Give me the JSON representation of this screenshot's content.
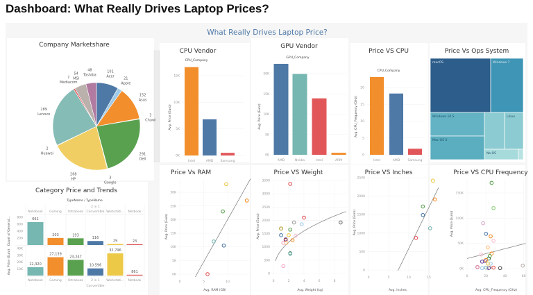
{
  "dashboard_title": "Dashboard: What Really Drives Laptop Prices?",
  "header": "What Really Drives Laptop Price?",
  "chart_data": [
    {
      "type": "pie",
      "title": "Company Marketshare",
      "slices": [
        {
          "name": "Acer",
          "value": 101,
          "color": "#4e79a7"
        },
        {
          "name": "Apple",
          "value": 21,
          "color": "#a0cbe8"
        },
        {
          "name": "Asus",
          "value": 152,
          "color": "#f28e2b"
        },
        {
          "name": "Chuwi",
          "value": 3,
          "color": "#ffbe7d"
        },
        {
          "name": "Dell",
          "value": 291,
          "color": "#59a14f"
        },
        {
          "name": "Google",
          "value": 3,
          "color": "#8cd17d"
        },
        {
          "name": "HP",
          "value": 268,
          "color": "#f1ce63"
        },
        {
          "name": "Huawei",
          "value": 2,
          "color": "#b6992d"
        },
        {
          "name": "Lenovo",
          "value": 289,
          "color": "#86bcb6"
        },
        {
          "name": "Mediacom",
          "value": 7,
          "color": "#e15759"
        },
        {
          "name": "MSI",
          "value": 54,
          "color": "#bab0ac"
        },
        {
          "name": "Toshiba",
          "value": 48,
          "color": "#b07aa1"
        }
      ]
    },
    {
      "type": "bar",
      "title": "Category Price and Trends",
      "xlabel": "TypeName / TypeName",
      "categories": [
        [
          "Notebook"
        ],
        [
          "Gaming"
        ],
        [
          "Ultrabook"
        ],
        [
          "2 in 1",
          "Convertible"
        ],
        [
          "Workstati..."
        ],
        [
          "Netbook"
        ]
      ],
      "colors": [
        "#76b7b2",
        "#f28e2b",
        "#59a14f",
        "#4e79a7",
        "#edc948",
        "#e15759"
      ],
      "series": [
        {
          "name": "Count of General...",
          "values": [
            661,
            203,
            193,
            116,
            29,
            23
          ],
          "ylim": [
            0,
            800
          ],
          "ticks": [
            "200",
            "400",
            "600",
            "800"
          ]
        },
        {
          "name": "Avg. Price (Euro)",
          "values": [
            12320,
            27139,
            23247,
            10596,
            32796,
            861
          ],
          "ylim": [
            0,
            40000
          ],
          "ticks": [
            "10K",
            "20K",
            "30K",
            "40K"
          ]
        }
      ]
    },
    {
      "type": "bar",
      "title": "CPU Vendor",
      "xlabel": "CPU_Company",
      "ylabel": "Avg. Price (Euro)",
      "categories": [
        "Intel",
        "AMD",
        "Samsung"
      ],
      "values": [
        16600,
        6800,
        500
      ],
      "colors": [
        "#f28e2b",
        "#4e79a7",
        "#e15759"
      ],
      "ylim": [
        0,
        17000
      ],
      "ticks": [
        0,
        5000,
        10000,
        15000
      ],
      "tick_labels": [
        "0K",
        "5K",
        "10K",
        "15K"
      ]
    },
    {
      "type": "bar",
      "title": "GPU Vendor",
      "xlabel": "GPU_Company",
      "ylabel": "Avg. Price (Euro)",
      "categories": [
        "AMD",
        "Nvidia",
        "Intel",
        "ARM"
      ],
      "values": [
        22400,
        19900,
        13900,
        500
      ],
      "colors": [
        "#4e79a7",
        "#76b7b2",
        "#e15759",
        "#f28e2b"
      ],
      "ylim": [
        0,
        23000
      ],
      "ticks": [
        0,
        5000,
        10000,
        15000,
        20000
      ],
      "tick_labels": [
        "0K",
        "5K",
        "10K",
        "15K",
        "20K"
      ]
    },
    {
      "type": "bar",
      "title": "Price VS CPU",
      "xlabel": "CPU_Company",
      "ylabel": "Avg. CPU_Frequency (GHz)",
      "categories": [
        "Intel",
        "AMD",
        "Samsung"
      ],
      "values": [
        23.1,
        18.2,
        1.8
      ],
      "colors": [
        "#f28e2b",
        "#4e79a7",
        "#e15759"
      ],
      "ylim": [
        0,
        24
      ],
      "ticks": [
        0,
        5,
        10,
        15,
        20
      ],
      "tick_labels": [
        "0",
        "5",
        "10",
        "15",
        "20"
      ]
    },
    {
      "type": "treemap",
      "title": "Price Vs Ops System",
      "items": [
        {
          "name": "macOS",
          "color": "#2d5d8a"
        },
        {
          "name": "Windows 7",
          "color": "#3f95b5"
        },
        {
          "name": "Windows 10 S",
          "color": "#63b3c4"
        },
        {
          "name": "Mac OS X",
          "color": "#5aaebf"
        },
        {
          "name": "",
          "color": "#8ccbd1"
        },
        {
          "name": "Linux",
          "color": "#8ccbd1"
        },
        {
          "name": "No OS",
          "color": "#a7dadb"
        },
        {
          "name": "",
          "color": "#b9e2e2"
        }
      ]
    },
    {
      "type": "scatter",
      "title": "Price Vs RAM",
      "xlabel": "Avg. RAM (GB)",
      "ylabel": "Avg. Price (Euro)",
      "xlim": [
        0,
        15
      ],
      "ylim": [
        0,
        35000
      ],
      "xticks": [
        0,
        5,
        10
      ],
      "xtick_labels": [
        "0",
        "5",
        "10"
      ],
      "yticks": [
        0,
        5000,
        10000,
        15000,
        20000,
        25000,
        30000
      ],
      "ytick_labels": [
        "0K",
        "5K",
        "10K",
        "15K",
        "20K",
        "25K",
        "30K"
      ],
      "points": [
        {
          "x": 5.8,
          "y": 0,
          "color": "#e15759"
        },
        {
          "x": 7.1,
          "y": 12000,
          "color": "#76b7b2"
        },
        {
          "x": 9.0,
          "y": 23000,
          "color": "#59a14f"
        },
        {
          "x": 9.2,
          "y": 10500,
          "color": "#4e79a7"
        },
        {
          "x": 9.7,
          "y": 33000,
          "color": "#edc948"
        },
        {
          "x": 14.0,
          "y": 27000,
          "color": "#f28e2b"
        }
      ],
      "trend": {
        "type": "linear",
        "slope": 3114,
        "intercept": -11090,
        "x_range": [
          3.24,
          14.8
        ]
      }
    },
    {
      "type": "scatter",
      "title": "Price VS Weight",
      "xlabel": "Avg. Weight (kg)",
      "ylabel": "Avg. Price (Euro)",
      "xlim": [
        0,
        9.5
      ],
      "ylim": [
        0,
        3500
      ],
      "xticks": [
        0,
        2,
        4,
        6,
        8
      ],
      "xtick_labels": [
        "0",
        "2",
        "4",
        "6",
        "8"
      ],
      "yticks": [
        0,
        500,
        1000,
        1500,
        2000,
        2500,
        3000,
        3500
      ],
      "ytick_labels": [
        "0",
        "500",
        "1000",
        "1500",
        "2000",
        "2500",
        "3000",
        "3500"
      ],
      "points": [
        {
          "x": 2.2,
          "y": 3370,
          "color": "#e15759"
        },
        {
          "x": 4.0,
          "y": 2100,
          "color": "#e15759"
        },
        {
          "x": 2.7,
          "y": 1920,
          "color": "#9d9d9d"
        },
        {
          "x": 3.7,
          "y": 1850,
          "color": "#a0cbe8"
        },
        {
          "x": 8.8,
          "y": 1920,
          "color": "#6b6b6b"
        },
        {
          "x": 1.0,
          "y": 1690,
          "color": "#b6992d"
        },
        {
          "x": 2.2,
          "y": 1650,
          "color": "#59a14f"
        },
        {
          "x": 1.0,
          "y": 1440,
          "color": "#4e79a7"
        },
        {
          "x": 2.0,
          "y": 1440,
          "color": "#edc948"
        },
        {
          "x": 2.9,
          "y": 1420,
          "color": "#fabfd2"
        },
        {
          "x": 1.6,
          "y": 1290,
          "color": "#8b6bb1"
        },
        {
          "x": 1.6,
          "y": 1260,
          "color": "#9c3d3d"
        },
        {
          "x": 1.3,
          "y": 1150,
          "color": "#f4a3c3"
        },
        {
          "x": 1.7,
          "y": 1150,
          "color": "#ffbe7d"
        },
        {
          "x": 2.5,
          "y": 1250,
          "color": "#f28e2b"
        },
        {
          "x": 2.2,
          "y": 760,
          "color": "#3d7a4f"
        },
        {
          "x": 2.2,
          "y": 740,
          "color": "#76b7b2"
        },
        {
          "x": 1.3,
          "y": 280,
          "color": "#f4a3c3"
        }
      ],
      "trend": {
        "type": "power",
        "a": 872,
        "b": 0.437,
        "x_range": [
          0.25,
          9.5
        ]
      }
    },
    {
      "type": "scatter",
      "title": "Price VS Inches",
      "xlabel": "Avg. Inches",
      "ylabel": "Avg. Price (Euro)",
      "xlim": [
        0,
        18
      ],
      "ylim": [
        0,
        2500
      ],
      "xticks": [
        0,
        5,
        10,
        15
      ],
      "xtick_labels": [
        "0",
        "5",
        "10",
        "15"
      ],
      "yticks": [
        0,
        500,
        1000,
        1500,
        2000,
        2500
      ],
      "ytick_labels": [
        "0",
        "500",
        "1000",
        "1500",
        "2000",
        "2500"
      ],
      "points": [
        {
          "x": 16.0,
          "y": 2420,
          "color": "#edc948"
        },
        {
          "x": 16.5,
          "y": 1910,
          "color": "#f28e2b"
        },
        {
          "x": 13.5,
          "y": 1720,
          "color": "#59a14f"
        },
        {
          "x": 13.5,
          "y": 1490,
          "color": "#4e79a7"
        },
        {
          "x": 15.3,
          "y": 1130,
          "color": "#76b7b2"
        },
        {
          "x": 11.8,
          "y": 870,
          "color": "#e15759"
        }
      ],
      "trend": {
        "type": "linear",
        "slope": 222.8,
        "intercept": -1646,
        "x_range": [
          7.3,
          17.4
        ]
      }
    },
    {
      "type": "scatter",
      "title": "Price VS CPU Frequency",
      "xlabel": "Avg. CPU_Frequency (GHz)",
      "ylabel": "Avg. Price (Euro)",
      "xlim": [
        0,
        62
      ],
      "ylim": [
        0,
        175000
      ],
      "xticks": [
        0,
        20,
        40,
        60
      ],
      "xtick_labels": [
        "0",
        "20",
        "40",
        "60"
      ],
      "yticks": [
        0,
        50000,
        100000,
        150000
      ],
      "ytick_labels": [
        "0K",
        "50K",
        "100K",
        "150K"
      ],
      "points": [
        {
          "x": 26,
          "y": 170000,
          "color": "#59a14f"
        },
        {
          "x": 28,
          "y": 120000,
          "color": "#8cd17d"
        },
        {
          "x": 17,
          "y": 90000,
          "color": "#d4a6c8"
        },
        {
          "x": 20,
          "y": 69000,
          "color": "#4e79a7"
        },
        {
          "x": 25,
          "y": 64000,
          "color": "#f28e2b"
        },
        {
          "x": 28,
          "y": 55000,
          "color": "#fabfd2"
        },
        {
          "x": 22,
          "y": 42000,
          "color": "#ffbe7d"
        },
        {
          "x": 15,
          "y": 28000,
          "color": "#fabfd2"
        },
        {
          "x": 26,
          "y": 30000,
          "color": "#f28e2b"
        },
        {
          "x": 24,
          "y": 25000,
          "color": "#59a14f"
        },
        {
          "x": 23,
          "y": 20000,
          "color": "#3d7a4f"
        },
        {
          "x": 20,
          "y": 17000,
          "color": "#f28e2b"
        },
        {
          "x": 19,
          "y": 15000,
          "color": "#8b6bb1"
        },
        {
          "x": 16,
          "y": 14000,
          "color": "#6b4e9c"
        },
        {
          "x": 25,
          "y": 10000,
          "color": "#a0cbe8"
        },
        {
          "x": 22,
          "y": 10000,
          "color": "#edc948"
        },
        {
          "x": 11,
          "y": 3000,
          "color": "#d37295"
        },
        {
          "x": 16,
          "y": 1000,
          "color": "#a0cbe8"
        },
        {
          "x": 20,
          "y": 2000,
          "color": "#76b7b2"
        },
        {
          "x": 23,
          "y": 1000,
          "color": "#6b4e9c"
        },
        {
          "x": 24,
          "y": 2000,
          "color": "#bab0ac"
        },
        {
          "x": 28,
          "y": 2000,
          "color": "#e15759"
        },
        {
          "x": 35,
          "y": 1000,
          "color": "#555555"
        },
        {
          "x": 59,
          "y": 6000,
          "color": "#bab0ac"
        }
      ],
      "trend": {
        "type": "linear",
        "slope": 484,
        "intercept": 20000,
        "x_range": [
          0,
          62
        ]
      }
    }
  ]
}
